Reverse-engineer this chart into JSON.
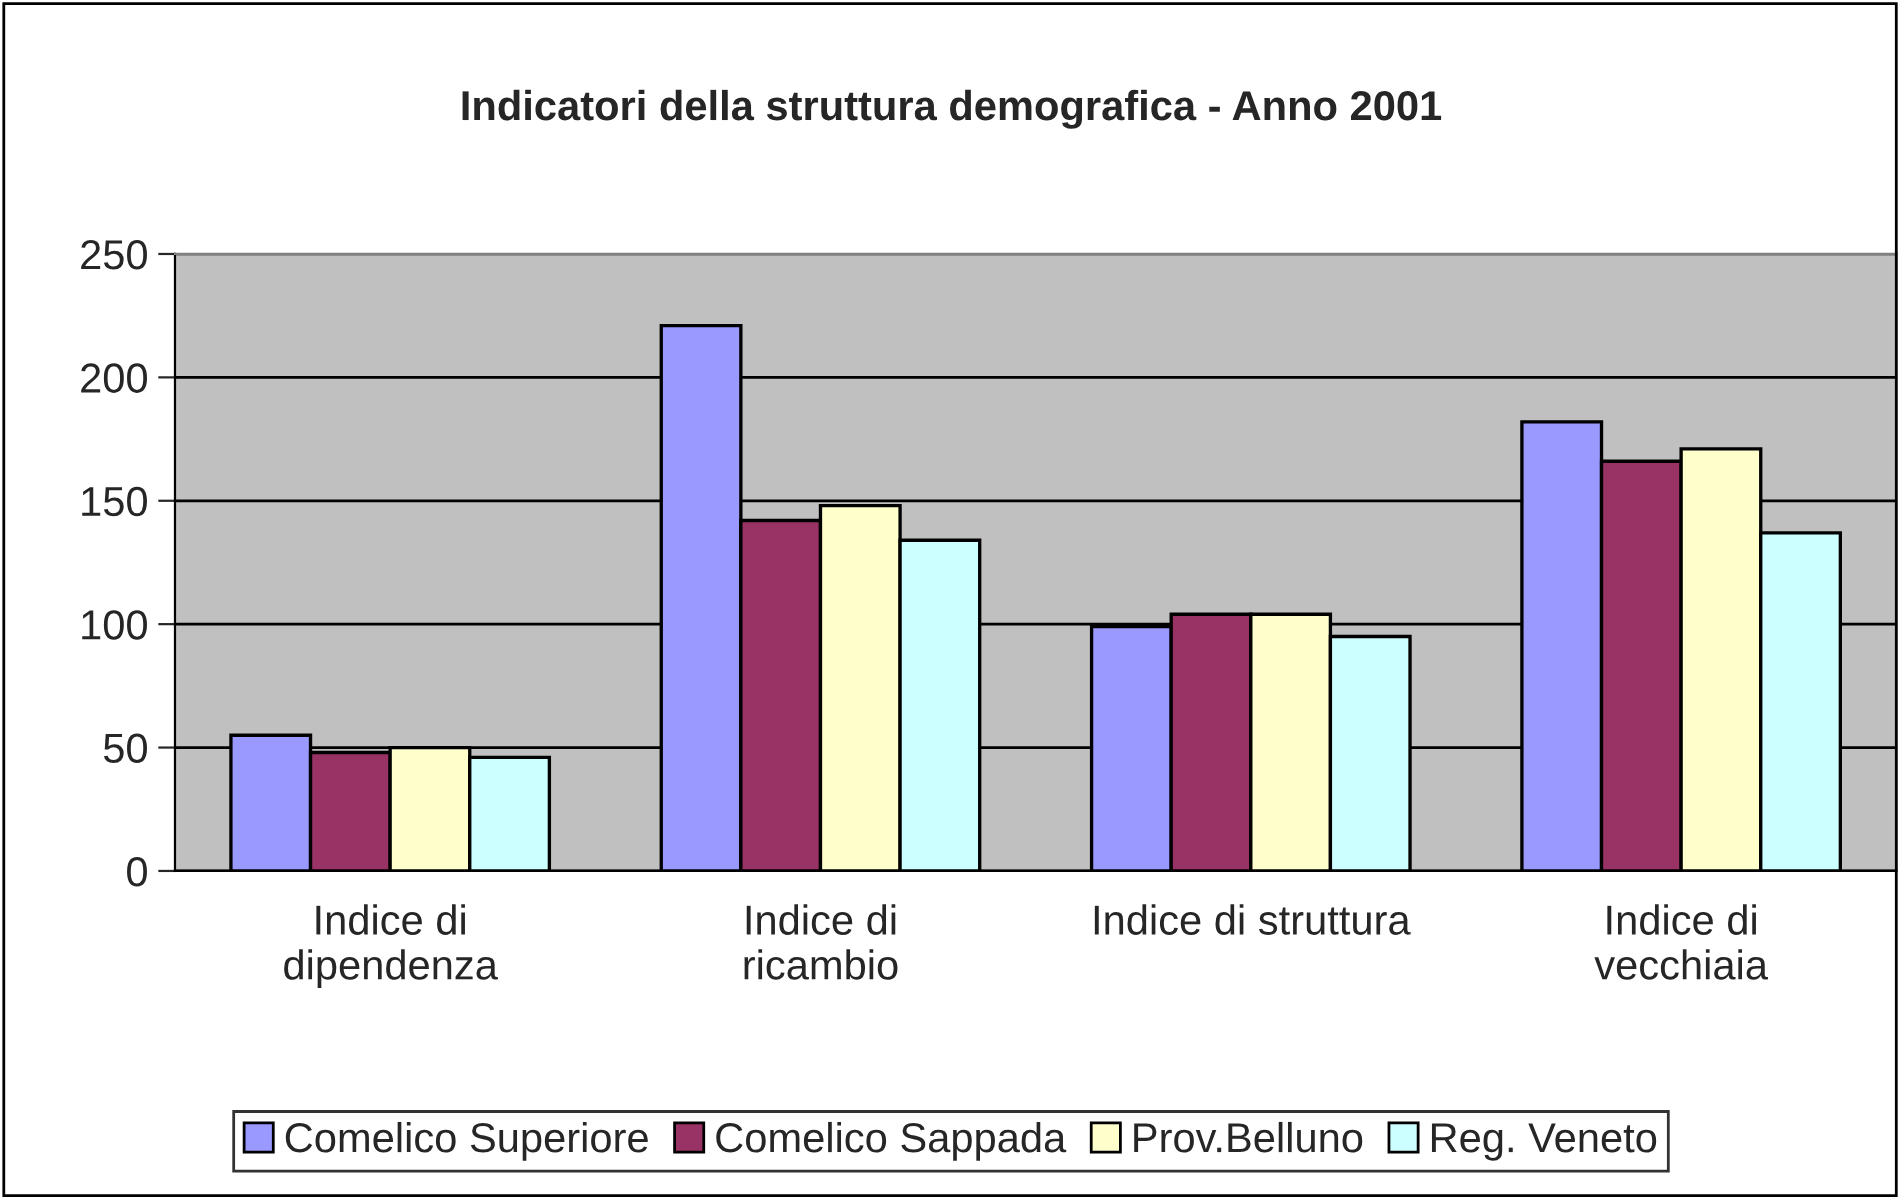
{
  "chart_data": {
    "type": "bar",
    "title": "Indicatori della struttura demografica - Anno 2001",
    "categories": [
      "Indice di\ndipendenza",
      "Indice di\nricambio",
      "Indice di struttura",
      "Indice di\nvecchiaia"
    ],
    "series": [
      {
        "name": "Comelico Superiore",
        "color": "#9999ff",
        "values": [
          55,
          221,
          99,
          182
        ]
      },
      {
        "name": "Comelico Sappada",
        "color": "#993366",
        "values": [
          48,
          142,
          104,
          166
        ]
      },
      {
        "name": "Prov.Belluno",
        "color": "#ffffcc",
        "values": [
          50,
          148,
          104,
          171
        ]
      },
      {
        "name": "Reg. Veneto",
        "color": "#ccffff",
        "values": [
          46,
          134,
          95,
          137
        ]
      }
    ],
    "ylim": [
      0,
      250
    ],
    "yticks": [
      0,
      50,
      100,
      150,
      200,
      250
    ],
    "grid": "y",
    "legend": "bottom"
  }
}
